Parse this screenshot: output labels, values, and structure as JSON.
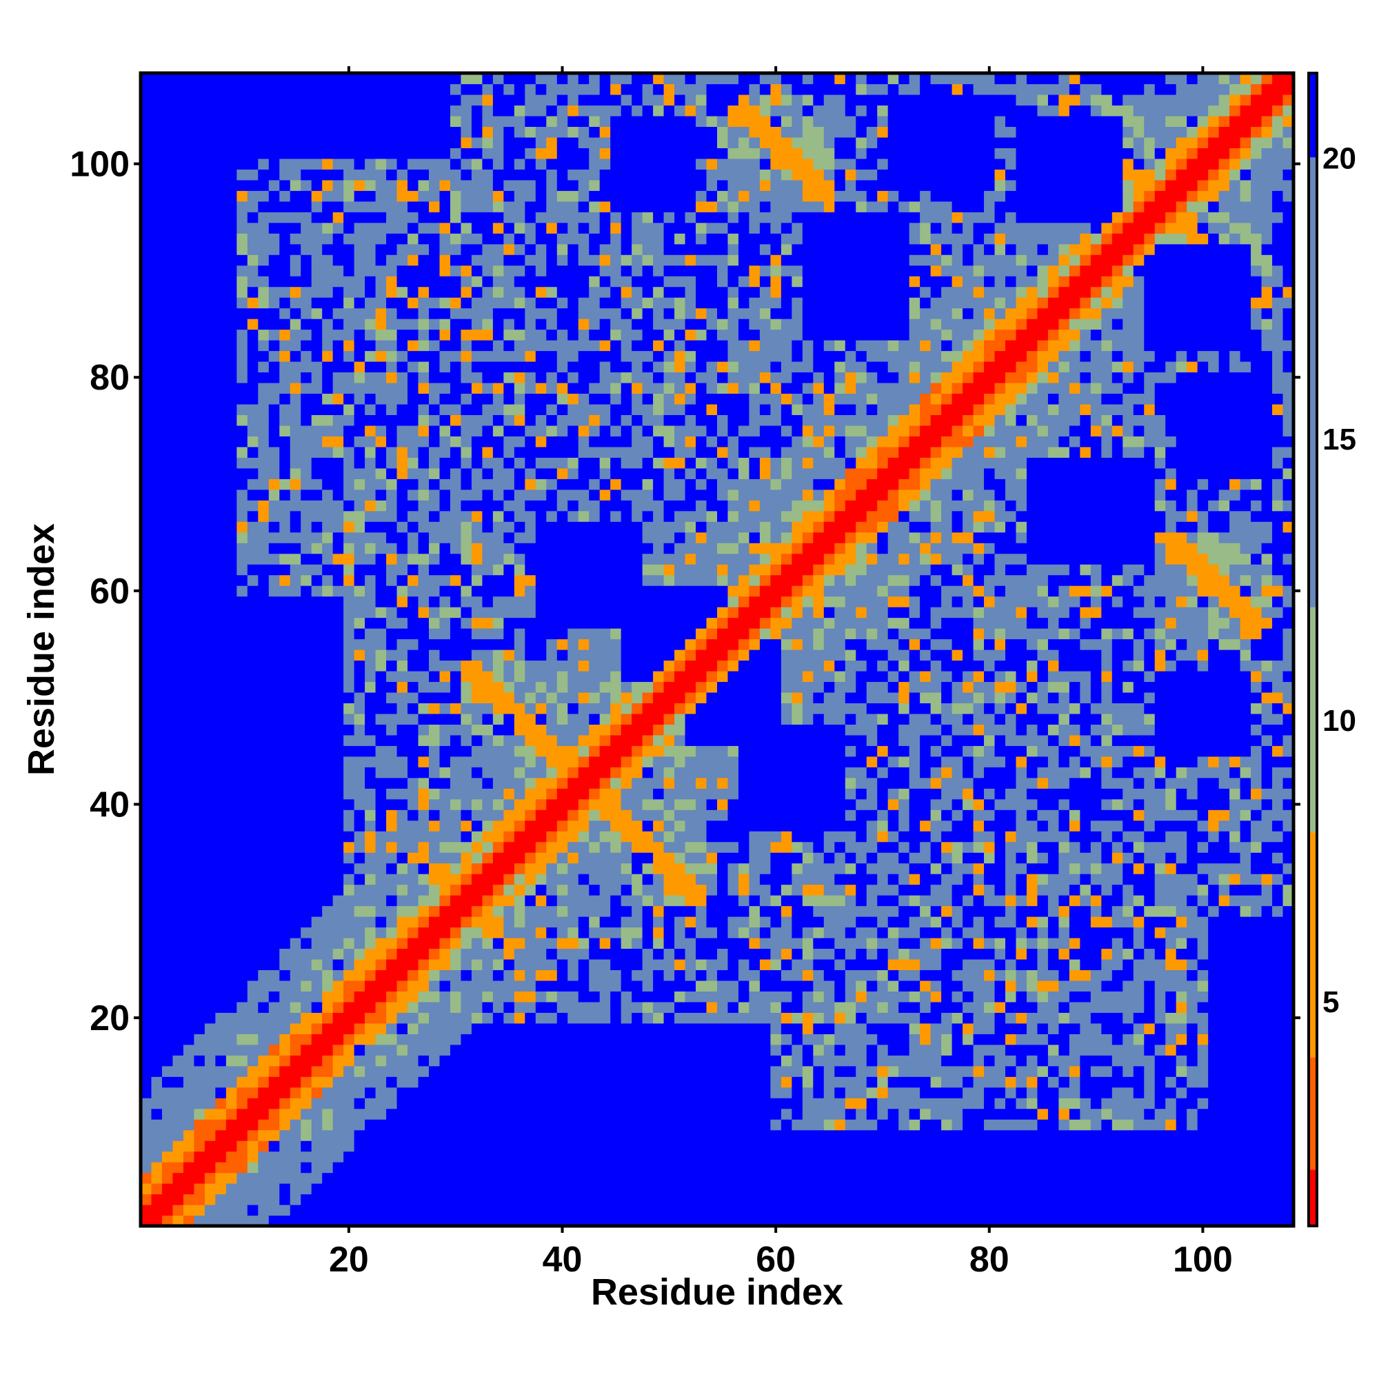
{
  "chart_data": {
    "type": "heatmap",
    "title": "",
    "xlabel": "Residue index",
    "ylabel": "Residue index",
    "n_residues": 108,
    "xlim": [
      1,
      108
    ],
    "ylim": [
      1,
      108
    ],
    "x_ticks": [
      20,
      40,
      60,
      80,
      100
    ],
    "y_ticks": [
      20,
      40,
      60,
      80,
      100
    ],
    "colorbar": {
      "ticks": [
        5,
        10,
        15,
        20
      ],
      "range": [
        1,
        21.5
      ],
      "colors": [
        {
          "max": 2,
          "color": "#ff0000"
        },
        {
          "max": 4,
          "color": "#ff6000"
        },
        {
          "max": 8,
          "color": "#ff9900"
        },
        {
          "max": 12,
          "color": "#99bb88"
        },
        {
          "max": 20,
          "color": "#6688bb"
        },
        {
          "max": 21.5,
          "color": "#0000ff"
        }
      ]
    },
    "secondary_structure_contacts": [
      {
        "type": "helix",
        "start": 1,
        "end": 26
      },
      {
        "type": "helix",
        "start": 66,
        "end": 84
      },
      {
        "type": "antiparallel",
        "a": [
          28,
          34
        ],
        "b": [
          28,
          34
        ]
      },
      {
        "type": "antiparallel",
        "a": [
          31,
          43
        ],
        "b": [
          43,
          53
        ]
      },
      {
        "type": "antiparallel",
        "a": [
          43,
          53
        ],
        "b": [
          53,
          63
        ]
      },
      {
        "type": "antiparallel",
        "a": [
          53,
          63
        ],
        "b": [
          43,
          53
        ]
      },
      {
        "type": "antiparallel",
        "a": [
          41,
          53
        ],
        "b": [
          31,
          43
        ]
      },
      {
        "type": "antiparallel",
        "a": [
          56,
          65
        ],
        "b": [
          96,
          106
        ]
      },
      {
        "type": "antiparallel",
        "a": [
          87,
          100
        ],
        "b": [
          87,
          106
        ]
      },
      {
        "type": "antiparallel",
        "a": [
          95,
          106
        ],
        "b": [
          57,
          66
        ]
      }
    ],
    "value_unit": "distance"
  }
}
